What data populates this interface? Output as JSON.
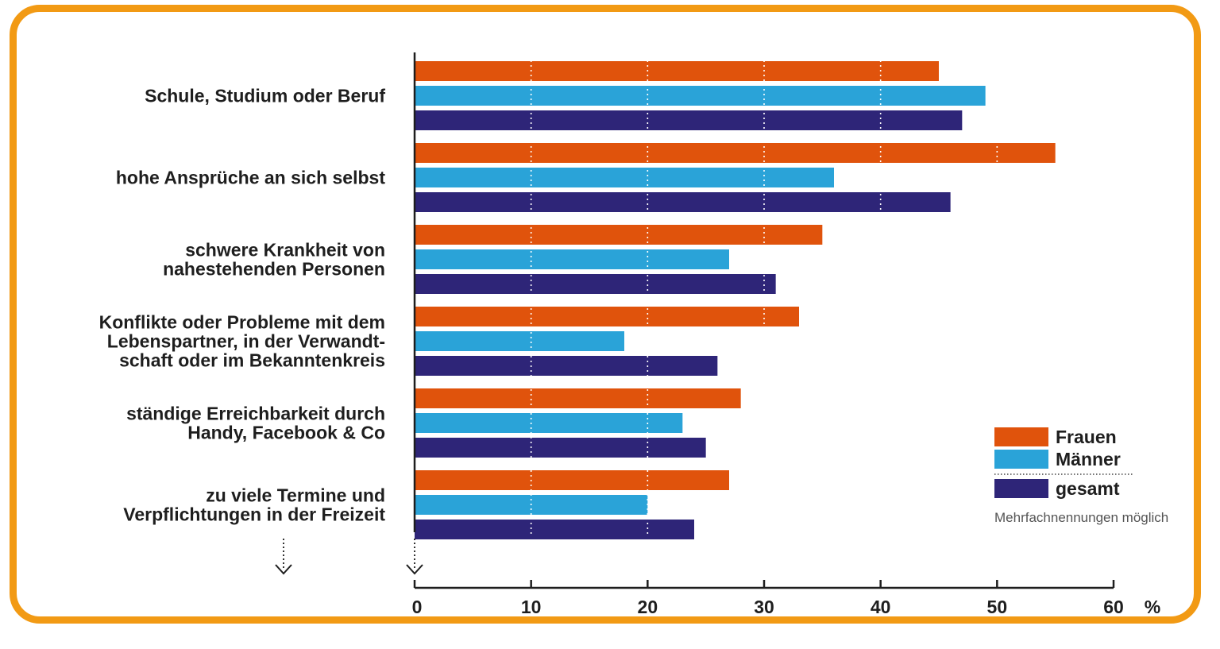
{
  "chart_data": {
    "type": "bar",
    "orientation": "horizontal",
    "categories": [
      [
        "Schule, Studium oder Beruf"
      ],
      [
        "hohe Ansprüche an sich selbst"
      ],
      [
        "schwere Krankheit von",
        "nahestehenden Personen"
      ],
      [
        "Konflikte oder Probleme mit dem",
        "Lebenspartner, in der Verwandt-",
        "schaft oder im Bekanntenkreis"
      ],
      [
        "ständige Erreichbarkeit durch",
        "Handy, Facebook & Co"
      ],
      [
        "zu viele Termine und",
        "Verpflichtungen in der Freizeit"
      ]
    ],
    "series": [
      {
        "name": "Frauen",
        "color": "#e0530c",
        "values": [
          45,
          55,
          35,
          33,
          28,
          27
        ]
      },
      {
        "name": "Männer",
        "color": "#2aa3d8",
        "values": [
          49,
          36,
          27,
          18,
          23,
          20
        ]
      },
      {
        "name": "gesamt",
        "color": "#2e2578",
        "values": [
          47,
          46,
          31,
          26,
          25,
          24
        ]
      }
    ],
    "xlim": [
      0,
      60
    ],
    "xticks": [
      "0",
      "10",
      "20",
      "30",
      "40",
      "50",
      "60"
    ],
    "xunit": "%",
    "grid": "dotted vertical",
    "legend_position": "bottom-right",
    "note": "Mehrfachnennungen möglich"
  }
}
